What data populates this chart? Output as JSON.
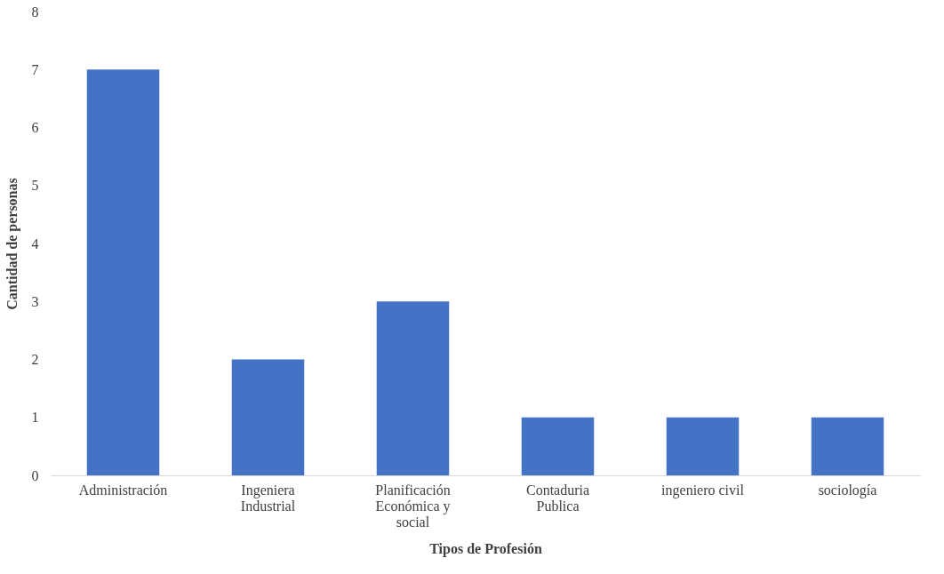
{
  "chart_data": {
    "type": "bar",
    "xlabel": "Tipos de Profesión",
    "ylabel": "Cantidad de personas",
    "categories": [
      "Administración",
      "Ingeniera Industrial",
      "Planificación Económica y social",
      "Contaduria Publica",
      "ingeniero civil",
      "sociología"
    ],
    "values": [
      7,
      2,
      3,
      1,
      1,
      1
    ],
    "color": "#4472c4",
    "ylim": [
      0,
      8
    ],
    "yticks": [
      0,
      1,
      2,
      3,
      4,
      5,
      6,
      7,
      8
    ],
    "grid": false
  }
}
